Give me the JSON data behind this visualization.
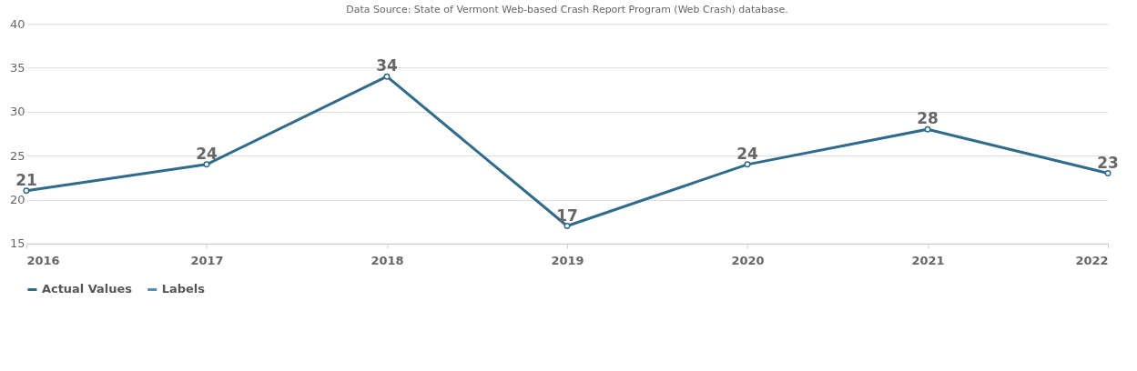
{
  "chart_data": {
    "type": "line",
    "annotations": [
      "Data Source: State of Vermont Web-based Crash Report Program (Web Crash) database."
    ],
    "x": [
      2016,
      2017,
      2018,
      2019,
      2020,
      2021,
      2022
    ],
    "xlim": [
      2016,
      2022
    ],
    "xticks": [
      2016,
      2017,
      2018,
      2019,
      2020,
      2021,
      2022
    ],
    "ylim": [
      15,
      40
    ],
    "yticks": [
      15,
      20,
      25,
      30,
      35,
      40
    ],
    "series": [
      {
        "name": "Actual Values",
        "color": "#2e6b8c",
        "values": [
          21,
          24,
          34,
          17,
          24,
          28,
          23
        ]
      },
      {
        "name": "Labels",
        "color": "#5b8db3",
        "values": [
          null,
          null,
          null,
          null,
          null,
          null,
          null
        ]
      }
    ],
    "data_labels": true,
    "marker": "circle",
    "grid": "y",
    "legend": "bottom",
    "line_style": "solid"
  }
}
